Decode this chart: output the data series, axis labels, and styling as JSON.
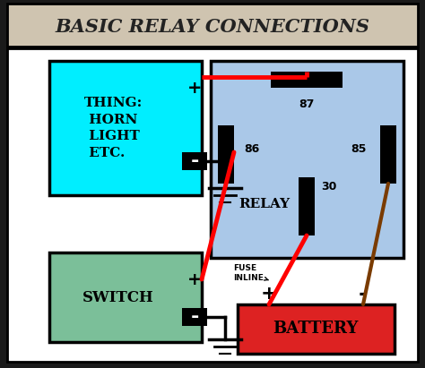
{
  "title": "BASIC RELAY CONNECTIONS",
  "outer_bg": "#1a1a1a",
  "title_bg": "#cfc4b0",
  "panel_bg": "#ffffff",
  "thing_box_color": "#00eeff",
  "relay_box_color": "#aac8e8",
  "switch_box_color": "#7bbf99",
  "battery_box_color": "#dd2222",
  "thing_text": "THING:\n HORN\n LIGHT\n ETC.",
  "switch_text": "SWITCH",
  "battery_text": "BATTERY",
  "relay_text": "RELAY",
  "fuse_label": "FUSE\nINLINE"
}
